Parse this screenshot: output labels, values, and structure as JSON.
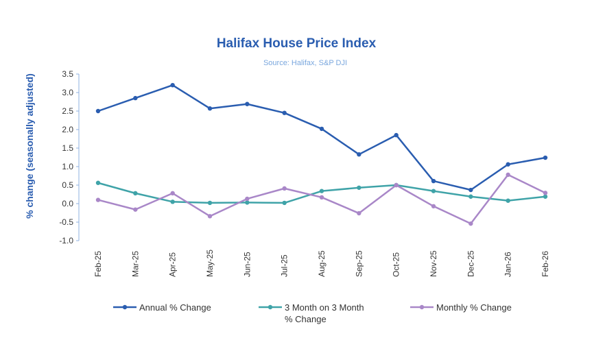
{
  "chart_data": {
    "type": "line",
    "title": "Halifax House Price Index",
    "subtitle": "Source: Halifax, S&P DJI",
    "ylabel": "% change (seasonally adjusted)",
    "xlabel": "",
    "ylim": [
      -1.0,
      3.5
    ],
    "yticks": [
      "3.5",
      "3.0",
      "2.5",
      "2.0",
      "1.5",
      "1.0",
      "0.5",
      "0.0",
      "-0.5",
      "-1.0"
    ],
    "grid": false,
    "legend": "bottom",
    "categories": [
      "Feb-25",
      "Mar-25",
      "Apr-25",
      "May-25",
      "Jun-25",
      "Jul-25",
      "Aug-25",
      "Sep-25",
      "Oct-25",
      "Nov-25",
      "Dec-25",
      "Jan-26",
      "Feb-26"
    ],
    "series": [
      {
        "name": "Annual % Change",
        "color": "#2a5db0",
        "values": [
          2.5,
          2.85,
          3.2,
          2.57,
          2.69,
          2.45,
          2.02,
          1.33,
          1.85,
          0.61,
          0.37,
          1.06,
          1.24
        ]
      },
      {
        "name": "3 Month on 3 Month % Change",
        "legend_lines": [
          "3 Month on 3 Month",
          "% Change"
        ],
        "color": "#3fa3a8",
        "values": [
          0.56,
          0.28,
          0.05,
          0.02,
          0.03,
          0.02,
          0.34,
          0.43,
          0.5,
          0.34,
          0.19,
          0.08,
          0.19
        ]
      },
      {
        "name": "Monthly % Change",
        "color": "#a987c8",
        "values": [
          0.1,
          -0.16,
          0.28,
          -0.34,
          0.13,
          0.41,
          0.17,
          -0.26,
          0.5,
          -0.07,
          -0.54,
          0.78,
          0.29
        ]
      }
    ]
  }
}
